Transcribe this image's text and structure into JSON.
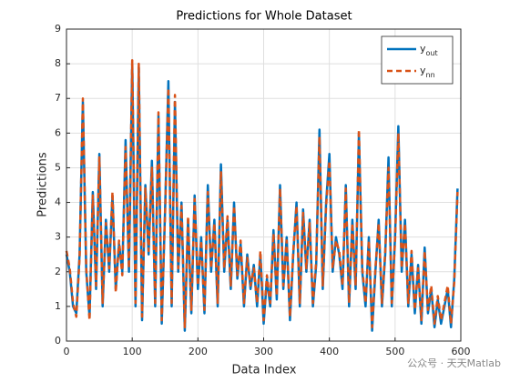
{
  "chart_data": {
    "type": "line",
    "title": "Predictions for Whole Dataset",
    "xlabel": "Data Index",
    "ylabel": "Predictions",
    "x": [
      0,
      5,
      10,
      15,
      20,
      25,
      30,
      35,
      40,
      45,
      50,
      55,
      60,
      65,
      70,
      75,
      80,
      85,
      90,
      95,
      100,
      105,
      110,
      115,
      120,
      125,
      130,
      135,
      140,
      145,
      150,
      155,
      160,
      165,
      170,
      175,
      180,
      185,
      190,
      195,
      200,
      205,
      210,
      215,
      220,
      225,
      230,
      235,
      240,
      245,
      250,
      255,
      260,
      265,
      270,
      275,
      280,
      285,
      290,
      295,
      300,
      305,
      310,
      315,
      320,
      325,
      330,
      335,
      340,
      345,
      350,
      355,
      360,
      365,
      370,
      375,
      380,
      385,
      390,
      395,
      400,
      405,
      410,
      415,
      420,
      425,
      430,
      435,
      440,
      445,
      450,
      455,
      460,
      465,
      470,
      475,
      480,
      485,
      490,
      495,
      500,
      505,
      510,
      515,
      520,
      525,
      530,
      535,
      540,
      545,
      550,
      555,
      560,
      565,
      570,
      575,
      580,
      585,
      590,
      595
    ],
    "series": [
      {
        "name": "y",
        "subscript": "out",
        "color": "#0072BD",
        "dashed": false,
        "values": [
          2.5,
          2.0,
          1.0,
          0.8,
          2.5,
          6.9,
          2.0,
          0.7,
          4.3,
          1.5,
          5.4,
          1.0,
          3.5,
          2.0,
          4.2,
          1.5,
          2.8,
          2.0,
          5.8,
          2.0,
          8.0,
          1.0,
          7.9,
          0.6,
          4.5,
          2.5,
          5.2,
          1.0,
          6.5,
          0.5,
          3.8,
          7.5,
          1.0,
          6.9,
          2.0,
          4.0,
          0.3,
          3.5,
          0.8,
          4.2,
          1.5,
          3.0,
          0.8,
          4.5,
          2.0,
          3.5,
          1.0,
          5.1,
          2.0,
          3.5,
          1.5,
          4.0,
          1.8,
          2.8,
          1.0,
          2.5,
          1.5,
          2.2,
          1.0,
          2.5,
          0.5,
          1.8,
          1.0,
          3.2,
          1.2,
          4.5,
          1.5,
          3.0,
          0.6,
          2.5,
          4.0,
          1.0,
          3.8,
          2.0,
          3.5,
          1.0,
          2.2,
          6.1,
          1.5,
          4.0,
          5.4,
          2.0,
          3.0,
          2.5,
          1.5,
          4.5,
          1.0,
          3.5,
          1.5,
          6.0,
          2.0,
          1.0,
          3.0,
          0.3,
          2.0,
          3.5,
          1.0,
          2.5,
          5.3,
          1.0,
          3.0,
          6.2,
          2.0,
          3.5,
          1.0,
          2.5,
          0.8,
          2.2,
          0.5,
          2.7,
          0.8,
          1.5,
          0.4,
          1.2,
          0.5,
          1.0,
          1.5,
          0.4,
          1.8,
          4.4
        ]
      },
      {
        "name": "y",
        "subscript": "nn",
        "color": "#D95319",
        "dashed": true,
        "values": [
          2.6,
          2.1,
          1.1,
          0.7,
          2.4,
          7.0,
          2.1,
          0.6,
          4.2,
          1.6,
          5.3,
          1.1,
          3.4,
          2.1,
          4.3,
          1.4,
          2.9,
          1.9,
          5.6,
          2.1,
          8.1,
          1.1,
          8.0,
          0.7,
          4.4,
          2.6,
          5.0,
          1.1,
          6.6,
          0.6,
          3.7,
          7.3,
          1.1,
          7.1,
          2.1,
          3.9,
          0.4,
          3.6,
          0.9,
          4.1,
          1.6,
          2.9,
          0.9,
          4.3,
          2.1,
          3.4,
          1.1,
          4.9,
          2.1,
          3.6,
          1.6,
          3.9,
          1.9,
          2.9,
          1.1,
          2.4,
          1.6,
          2.1,
          1.1,
          2.6,
          0.6,
          1.9,
          1.1,
          3.1,
          1.3,
          4.4,
          1.6,
          2.9,
          0.7,
          2.6,
          3.9,
          1.1,
          3.7,
          2.1,
          3.4,
          1.1,
          2.3,
          5.9,
          1.6,
          3.9,
          5.2,
          2.1,
          2.9,
          2.6,
          1.6,
          4.4,
          1.1,
          3.4,
          1.6,
          6.1,
          2.1,
          1.1,
          2.9,
          0.4,
          2.1,
          3.4,
          1.1,
          2.6,
          5.0,
          1.1,
          2.9,
          6.0,
          2.1,
          3.4,
          1.1,
          2.6,
          0.9,
          2.1,
          0.6,
          2.6,
          0.9,
          1.6,
          0.5,
          1.3,
          0.6,
          1.1,
          1.6,
          0.5,
          1.7,
          4.3
        ]
      }
    ],
    "xlim": [
      0,
      600
    ],
    "xticks": [
      0,
      100,
      200,
      300,
      400,
      500,
      600
    ],
    "ylim": [
      0,
      9
    ],
    "yticks": [
      0,
      1,
      2,
      3,
      4,
      5,
      6,
      7,
      8,
      9
    ],
    "grid": true,
    "legend": "northeast",
    "watermark": "公众号 · 天天Matlab"
  }
}
